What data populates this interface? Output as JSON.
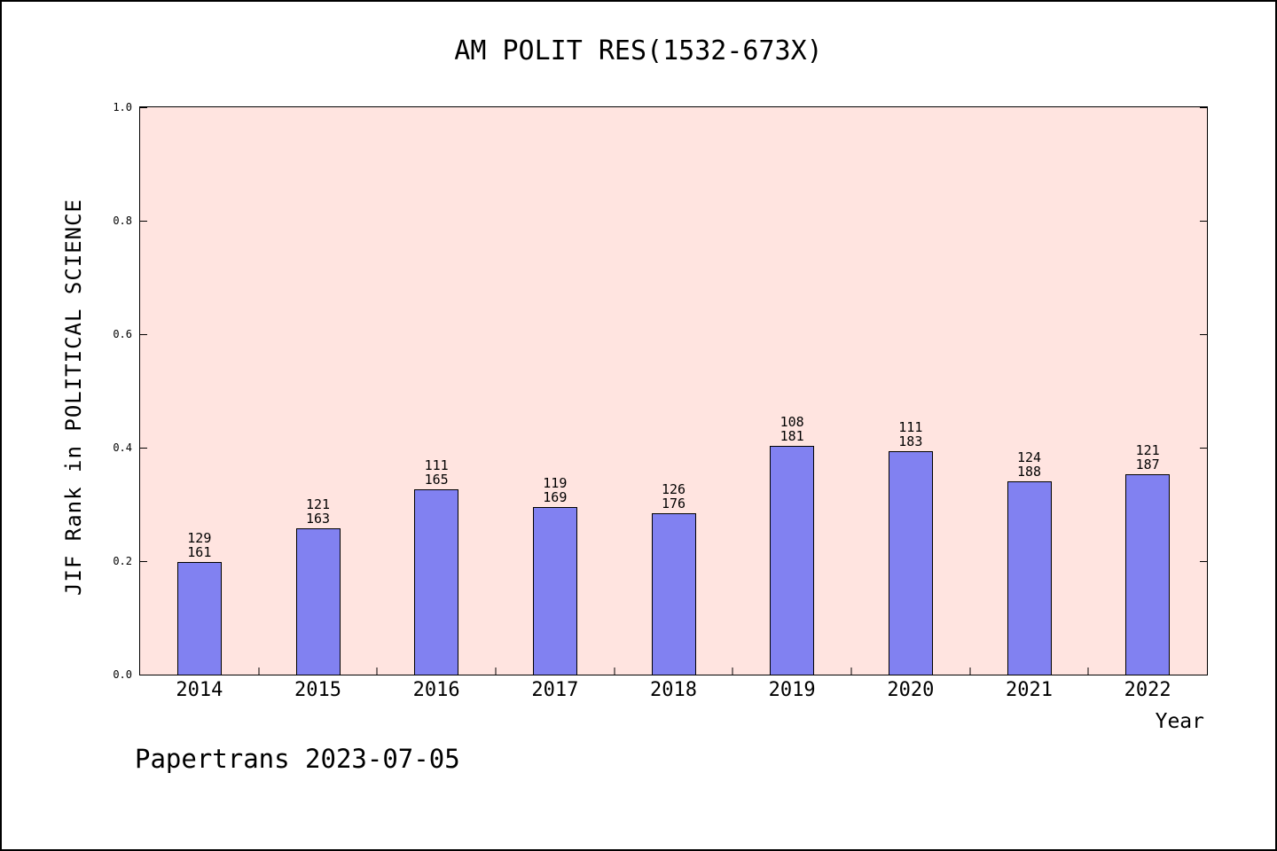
{
  "chart_data": {
    "type": "bar",
    "title": "AM POLIT RES(1532-673X)",
    "xlabel": "Year",
    "ylabel": "JIF Rank in POLITICAL SCIENCE",
    "annotation": "Papertrans 2023-07-05",
    "ylim": [
      0.0,
      1.0
    ],
    "ytick_labels": [
      "0.0",
      "0.2",
      "0.4",
      "0.6",
      "0.8",
      "1.0"
    ],
    "grid": false,
    "legend_position": "none",
    "categories": [
      "2014",
      "2015",
      "2016",
      "2017",
      "2018",
      "2019",
      "2020",
      "2021",
      "2022"
    ],
    "values": [
      0.199,
      0.258,
      0.327,
      0.296,
      0.284,
      0.403,
      0.393,
      0.34,
      0.353
    ],
    "ranks": [
      129,
      121,
      111,
      119,
      126,
      108,
      111,
      124,
      121
    ],
    "totals": [
      161,
      163,
      165,
      169,
      176,
      181,
      183,
      188,
      187
    ],
    "colors": {
      "bar": "#8181f1",
      "plot_bg": "#ffe4e0",
      "axis": "#000000",
      "page_bg": "#ffffff",
      "text": "#000000"
    }
  }
}
